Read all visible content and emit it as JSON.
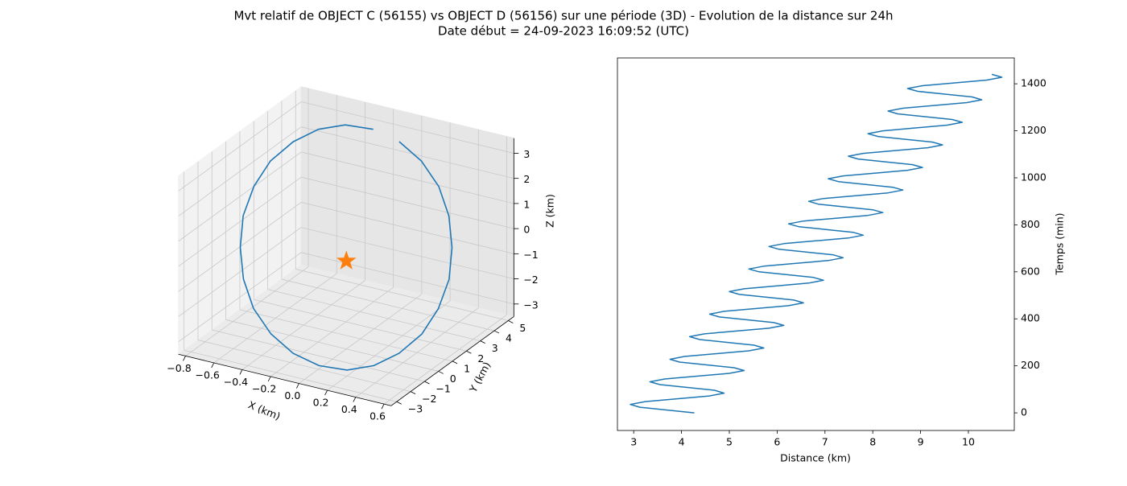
{
  "title": "Mvt relatif de OBJECT C (56155) vs OBJECT D (56156) sur une période (3D) - Evolution de la distance sur 24h",
  "subtitle": "Date début = 24-09-2023 16:09:52 (UTC)",
  "chart_data": [
    {
      "type": "line3d",
      "xlabel": "X (km)",
      "ylabel": "Y (km)",
      "zlabel": "Z (km)",
      "color": "#1f77b4",
      "grid": true,
      "x": [
        -0.1,
        0.07,
        0.23,
        0.36,
        0.46,
        0.53,
        0.55,
        0.53,
        0.46,
        0.36,
        0.23,
        0.07,
        -0.1,
        -0.27,
        -0.43,
        -0.56,
        -0.66,
        -0.73,
        -0.75,
        -0.73,
        -0.66,
        -0.56,
        -0.43,
        -0.27
      ],
      "y": [
        4.8,
        4.67,
        4.29,
        3.69,
        2.9,
        1.98,
        1,
        0.02,
        -0.9,
        -1.69,
        -2.29,
        -2.67,
        -2.8,
        -2.67,
        -2.29,
        -1.69,
        -0.9,
        0.02,
        1,
        1.98,
        2.9,
        3.69,
        4.29,
        4.67
      ],
      "z": [
        2.68,
        2.19,
        1.55,
        0.8,
        0,
        -0.8,
        -1.55,
        -2.19,
        -2.68,
        -2.99,
        -3.1,
        -2.99,
        -2.68,
        -2.19,
        -1.55,
        -0.8,
        0,
        0.8,
        1.55,
        2.19,
        2.68,
        2.99,
        3.1,
        2.99
      ],
      "marker": {
        "x": 0,
        "y": 0,
        "z": 0,
        "color": "#ff7f0e"
      },
      "xlim": [
        -0.85,
        0.65
      ],
      "ylim": [
        -3.4,
        5.4
      ],
      "zlim": [
        -3.5,
        3.6
      ],
      "xticks": [
        {
          "value": -0.8,
          "label": "−0.8"
        },
        {
          "value": -0.6,
          "label": "−0.6"
        },
        {
          "value": -0.4,
          "label": "−0.4"
        },
        {
          "value": -0.2,
          "label": "−0.2"
        },
        {
          "value": 0,
          "label": "0.0"
        },
        0.2,
        0.4,
        0.6
      ],
      "yticks": [
        {
          "value": -3,
          "label": "−3"
        },
        {
          "value": -2,
          "label": "−2"
        },
        {
          "value": -1,
          "label": "−1"
        },
        0,
        1,
        2,
        3,
        4,
        5
      ],
      "zticks": [
        {
          "value": -3,
          "label": "−3"
        },
        {
          "value": -2,
          "label": "−2"
        },
        {
          "value": -1,
          "label": "−1"
        },
        0,
        1,
        2,
        3
      ]
    },
    {
      "type": "line",
      "xlabel": "Distance (km)",
      "ylabel": "Temps (min)",
      "color": "#1f77b4",
      "yaxis_side": "right",
      "x": [
        4.27,
        3.7,
        3.13,
        2.93,
        3.24,
        3.91,
        4.58,
        4.89,
        4.69,
        4.12,
        3.55,
        3.34,
        3.65,
        4.32,
        5.0,
        5.31,
        5.1,
        4.53,
        3.96,
        3.76,
        4.06,
        4.74,
        5.41,
        5.72,
        5.52,
        4.95,
        4.38,
        4.17,
        4.48,
        5.15,
        5.83,
        6.14,
        5.93,
        5.36,
        4.79,
        4.59,
        4.89,
        5.57,
        6.24,
        6.55,
        6.35,
        5.78,
        5.21,
        5.0,
        5.31,
        5.98,
        6.66,
        6.97,
        6.76,
        6.19,
        5.62,
        5.41,
        5.72,
        6.4,
        7.07,
        7.38,
        7.18,
        6.61,
        6.04,
        5.83,
        6.14,
        6.81,
        7.49,
        7.8,
        7.59,
        7.02,
        6.45,
        6.24,
        6.55,
        7.23,
        7.9,
        8.21,
        8.0,
        7.43,
        6.86,
        6.66,
        6.97,
        7.64,
        8.32,
        8.63,
        8.42,
        7.85,
        7.28,
        7.07,
        7.38,
        8.06,
        8.73,
        9.04,
        8.83,
        8.26,
        7.69,
        7.49,
        7.8,
        8.47,
        9.15,
        9.46,
        9.25,
        8.68,
        8.11,
        7.9,
        8.21,
        8.89,
        9.56,
        9.87,
        9.66,
        9.09,
        8.52,
        8.32,
        8.63,
        9.3,
        9.97,
        10.28,
        10.08,
        9.51,
        8.94,
        8.73,
        9.04,
        9.72,
        10.39,
        10.7,
        10.49
      ],
      "values": [
        0,
        12,
        24,
        36,
        48,
        60,
        72,
        84,
        96,
        108,
        120,
        132,
        144,
        156,
        168,
        180,
        192,
        204,
        216,
        228,
        240,
        252,
        264,
        276,
        288,
        300,
        312,
        324,
        336,
        348,
        360,
        372,
        384,
        396,
        408,
        420,
        432,
        444,
        456,
        468,
        480,
        492,
        504,
        516,
        528,
        540,
        552,
        564,
        576,
        588,
        600,
        612,
        624,
        636,
        648,
        660,
        672,
        684,
        696,
        708,
        720,
        732,
        744,
        756,
        768,
        780,
        792,
        804,
        816,
        828,
        840,
        852,
        864,
        876,
        888,
        900,
        912,
        924,
        936,
        948,
        960,
        972,
        984,
        996,
        1008,
        1020,
        1032,
        1044,
        1056,
        1068,
        1080,
        1092,
        1104,
        1116,
        1128,
        1140,
        1152,
        1164,
        1176,
        1188,
        1200,
        1212,
        1224,
        1236,
        1248,
        1260,
        1272,
        1284,
        1296,
        1308,
        1320,
        1332,
        1344,
        1356,
        1368,
        1380,
        1392,
        1404,
        1416,
        1428,
        1440
      ],
      "xlim": [
        2.66,
        10.96
      ],
      "ylim": [
        -75,
        1510
      ],
      "xticks": [
        3,
        4,
        5,
        6,
        7,
        8,
        9,
        10
      ],
      "yticks": [
        0,
        200,
        400,
        600,
        800,
        1000,
        1200,
        1400
      ]
    }
  ]
}
